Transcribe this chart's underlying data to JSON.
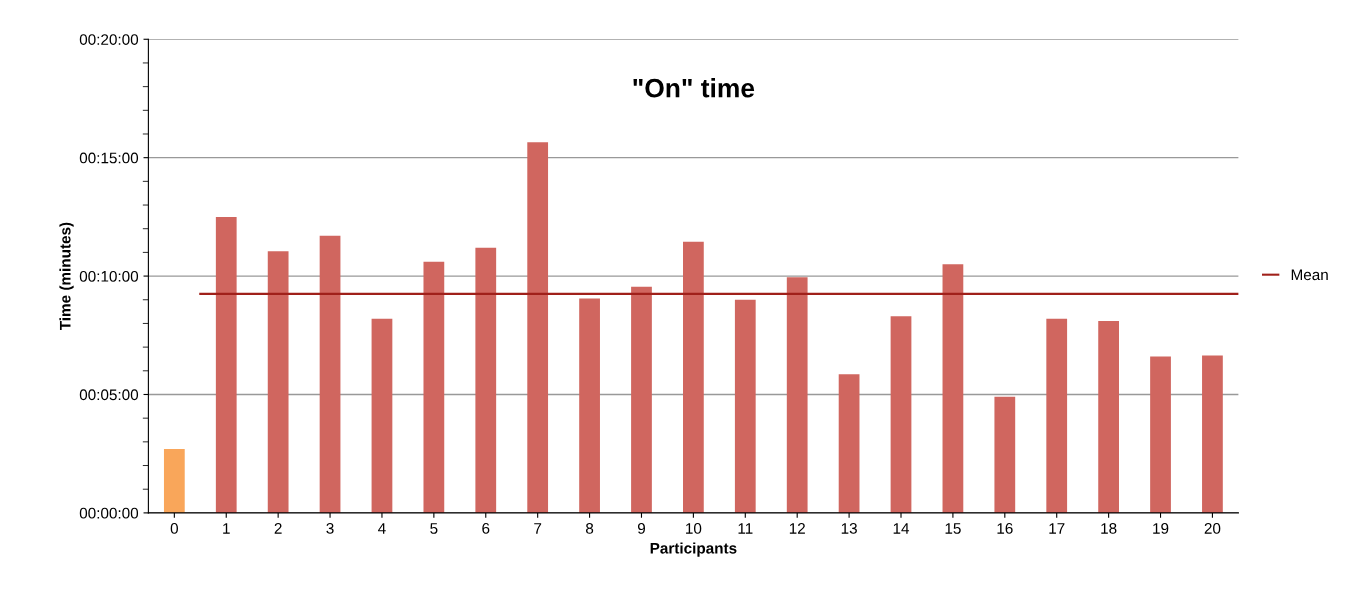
{
  "chart_data": {
    "type": "bar",
    "title": "\"On\" time",
    "xlabel": "Participants",
    "ylabel": "Time (minutes)",
    "categories": [
      "0",
      "1",
      "2",
      "3",
      "4",
      "5",
      "6",
      "7",
      "8",
      "9",
      "10",
      "11",
      "12",
      "13",
      "14",
      "15",
      "16",
      "17",
      "18",
      "19",
      "20"
    ],
    "values": [
      2.7,
      12.5,
      11.05,
      11.7,
      8.2,
      10.6,
      11.2,
      15.65,
      9.05,
      9.55,
      11.45,
      9.0,
      9.95,
      5.85,
      8.3,
      10.5,
      4.9,
      8.2,
      8.1,
      6.6,
      6.65
    ],
    "colors": [
      "#f9a65a",
      "#d0665f",
      "#d0665f",
      "#d0665f",
      "#d0665f",
      "#d0665f",
      "#d0665f",
      "#d0665f",
      "#d0665f",
      "#d0665f",
      "#d0665f",
      "#d0665f",
      "#d0665f",
      "#d0665f",
      "#d0665f",
      "#d0665f",
      "#d0665f",
      "#d0665f",
      "#d0665f",
      "#d0665f",
      "#d0665f"
    ],
    "ylim": [
      0,
      20
    ],
    "yticks": [
      {
        "value": 0,
        "label": "00:00:00"
      },
      {
        "value": 5,
        "label": "00:05:00"
      },
      {
        "value": 10,
        "label": "00:10:00"
      },
      {
        "value": 15,
        "label": "00:15:00"
      },
      {
        "value": 20,
        "label": "00:20:00"
      }
    ],
    "ref_lines": [
      {
        "axis": "y",
        "value": 9.25,
        "label": "Mean",
        "color": "#a0201a"
      }
    ],
    "grid": "y",
    "legend": "right"
  }
}
